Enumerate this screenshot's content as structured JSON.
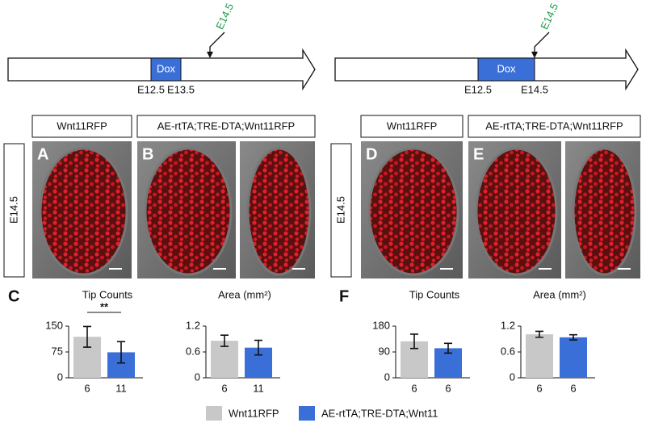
{
  "timelines": [
    {
      "dox": "Dox",
      "start": "E12.5",
      "end": "E13.5",
      "harvest": "E14.5"
    },
    {
      "dox": "Dox",
      "start": "E12.5",
      "end": "E14.5",
      "harvest": "E14.5"
    }
  ],
  "panels": [
    {
      "stage": "E14.5",
      "groups": [
        "Wnt11RFP",
        "AE-rtTA;TRE-DTA;Wnt11RFP"
      ],
      "letters": [
        "A",
        "B"
      ]
    },
    {
      "stage": "E14.5",
      "groups": [
        "Wnt11RFP",
        "AE-rtTA;TRE-DTA;Wnt11RFP"
      ],
      "letters": [
        "D",
        "E"
      ]
    }
  ],
  "chart_panels": [
    "C",
    "F"
  ],
  "chart_data": [
    {
      "type": "bar",
      "title": "Tip Counts",
      "categories": [
        "6",
        "11"
      ],
      "values": [
        119,
        74
      ],
      "errors": [
        30,
        31
      ],
      "colors": [
        "#c8c8c8",
        "#3a6fd8"
      ],
      "ylim": [
        0,
        150
      ],
      "yticks": [
        0,
        75,
        150
      ],
      "annotation": "**"
    },
    {
      "type": "bar",
      "title": "Area (mm²)",
      "categories": [
        "6",
        "11"
      ],
      "values": [
        0.86,
        0.7
      ],
      "errors": [
        0.13,
        0.17
      ],
      "colors": [
        "#c8c8c8",
        "#3a6fd8"
      ],
      "ylim": [
        0,
        1.2
      ],
      "yticks": [
        0,
        0.6,
        1.2
      ]
    },
    {
      "type": "bar",
      "title": "Tip Counts",
      "categories": [
        "6",
        "6"
      ],
      "values": [
        127,
        103
      ],
      "errors": [
        25,
        17
      ],
      "colors": [
        "#c8c8c8",
        "#3a6fd8"
      ],
      "ylim": [
        0,
        180
      ],
      "yticks": [
        0,
        90,
        180
      ]
    },
    {
      "type": "bar",
      "title": "Area (mm²)",
      "categories": [
        "6",
        "6"
      ],
      "values": [
        1.01,
        0.94
      ],
      "errors": [
        0.07,
        0.06
      ],
      "colors": [
        "#c8c8c8",
        "#3a6fd8"
      ],
      "ylim": [
        0,
        1.2
      ],
      "yticks": [
        0,
        0.6,
        1.2
      ]
    }
  ],
  "legend": [
    {
      "name": "Wnt11RFP",
      "color": "#c8c8c8"
    },
    {
      "name": "AE-rtTA;TRE-DTA;Wnt11",
      "color": "#3a6fd8"
    }
  ]
}
